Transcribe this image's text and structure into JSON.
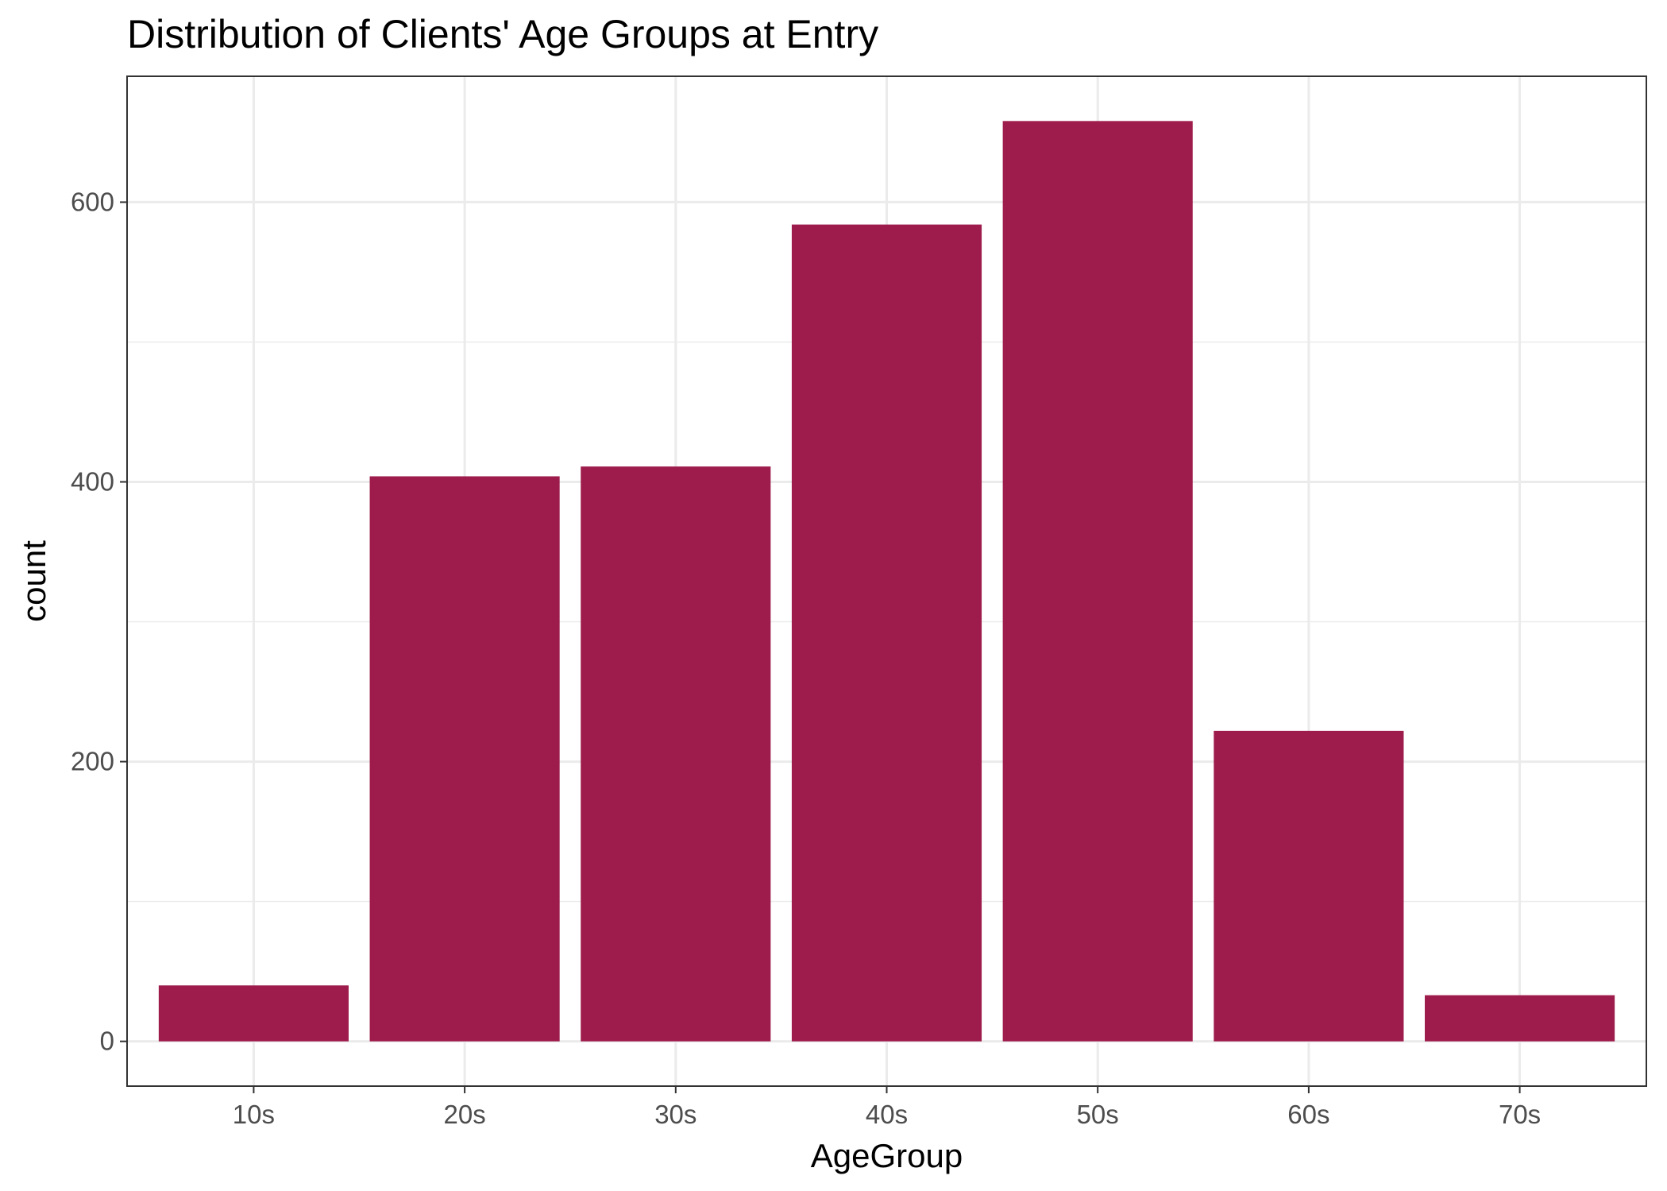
{
  "chart_data": {
    "type": "bar",
    "title": "Distribution of Clients' Age Groups at Entry",
    "xlabel": "AgeGroup",
    "ylabel": "count",
    "categories": [
      "10s",
      "20s",
      "30s",
      "40s",
      "50s",
      "60s",
      "70s"
    ],
    "values": [
      40,
      404,
      411,
      584,
      658,
      222,
      33
    ],
    "ylim": [
      -32,
      690
    ],
    "yticks": [
      0,
      200,
      400,
      600
    ],
    "ytick_labels": [
      "0",
      "200",
      "400",
      "600"
    ],
    "bar_color": "#9E1C4B",
    "grid": true,
    "legend": "none"
  }
}
